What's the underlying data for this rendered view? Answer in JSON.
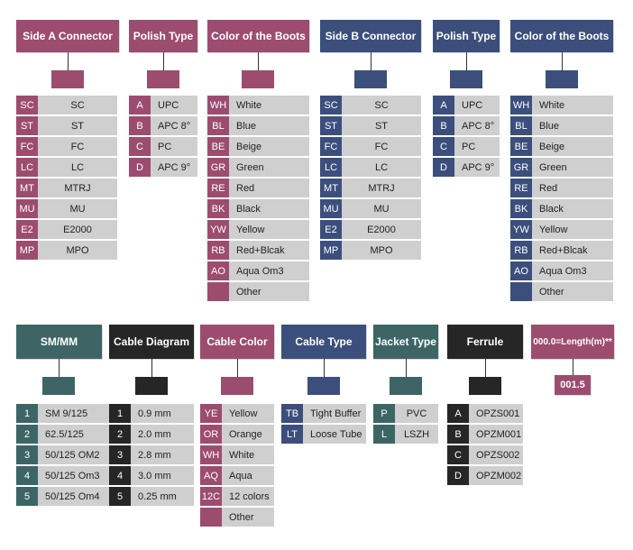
{
  "colors": {
    "mauve": "#9c4d6f",
    "navy": "#3c4f7c",
    "teal": "#3d6566",
    "dark": "#262626",
    "cell": "#cfcfcf"
  },
  "side_a_connector": {
    "title": "Side A Connector",
    "rows": [
      {
        "code": "SC",
        "label": "SC"
      },
      {
        "code": "ST",
        "label": "ST"
      },
      {
        "code": "FC",
        "label": "FC"
      },
      {
        "code": "LC",
        "label": "LC"
      },
      {
        "code": "MT",
        "label": "MTRJ"
      },
      {
        "code": "MU",
        "label": "MU"
      },
      {
        "code": "E2",
        "label": "E2000"
      },
      {
        "code": "MP",
        "label": "MPO"
      }
    ]
  },
  "polish_type_a": {
    "title": "Polish Type",
    "rows": [
      {
        "code": "A",
        "label": "UPC"
      },
      {
        "code": "B",
        "label": "APC 8°"
      },
      {
        "code": "C",
        "label": "PC"
      },
      {
        "code": "D",
        "label": "APC 9°"
      }
    ]
  },
  "boot_color_a": {
    "title": "Color of the Boots",
    "rows": [
      {
        "code": "WH",
        "label": "White"
      },
      {
        "code": "BL",
        "label": "Blue"
      },
      {
        "code": "BE",
        "label": "Beige"
      },
      {
        "code": "GR",
        "label": "Green"
      },
      {
        "code": "RE",
        "label": "Red"
      },
      {
        "code": "BK",
        "label": "Black"
      },
      {
        "code": "YW",
        "label": "Yellow"
      },
      {
        "code": "RB",
        "label": "Red+Blcak"
      },
      {
        "code": "AO",
        "label": "Aqua Om3"
      },
      {
        "code": "",
        "label": "Other"
      }
    ]
  },
  "side_b_connector": {
    "title": "Side B Connector",
    "rows": [
      {
        "code": "SC",
        "label": "SC"
      },
      {
        "code": "ST",
        "label": "ST"
      },
      {
        "code": "FC",
        "label": "FC"
      },
      {
        "code": "LC",
        "label": "LC"
      },
      {
        "code": "MT",
        "label": "MTRJ"
      },
      {
        "code": "MU",
        "label": "MU"
      },
      {
        "code": "E2",
        "label": "E2000"
      },
      {
        "code": "MP",
        "label": "MPO"
      }
    ]
  },
  "polish_type_b": {
    "title": "Polish Type",
    "rows": [
      {
        "code": "A",
        "label": "UPC"
      },
      {
        "code": "B",
        "label": "APC 8°"
      },
      {
        "code": "C",
        "label": "PC"
      },
      {
        "code": "D",
        "label": "APC 9°"
      }
    ]
  },
  "boot_color_b": {
    "title": "Color of the Boots",
    "rows": [
      {
        "code": "WH",
        "label": "White"
      },
      {
        "code": "BL",
        "label": "Blue"
      },
      {
        "code": "BE",
        "label": "Beige"
      },
      {
        "code": "GR",
        "label": "Green"
      },
      {
        "code": "RE",
        "label": "Red"
      },
      {
        "code": "BK",
        "label": "Black"
      },
      {
        "code": "YW",
        "label": "Yellow"
      },
      {
        "code": "RB",
        "label": "Red+Blcak"
      },
      {
        "code": "AO",
        "label": "Aqua Om3"
      },
      {
        "code": "",
        "label": "Other"
      }
    ]
  },
  "sm_mm": {
    "title": "SM/MM",
    "rows": [
      {
        "code": "1",
        "label": "SM 9/125"
      },
      {
        "code": "2",
        "label": "62.5/125"
      },
      {
        "code": "3",
        "label": "50/125 OM2"
      },
      {
        "code": "4",
        "label": "50/125 Om3"
      },
      {
        "code": "5",
        "label": "50/125 Om4"
      }
    ]
  },
  "cable_diagram": {
    "title": "Cable Diagram",
    "rows": [
      {
        "code": "1",
        "label": "0.9 mm"
      },
      {
        "code": "2",
        "label": "2.0 mm"
      },
      {
        "code": "3",
        "label": "2.8 mm"
      },
      {
        "code": "4",
        "label": "3.0 mm"
      },
      {
        "code": "5",
        "label": "0.25 mm"
      }
    ]
  },
  "cable_color": {
    "title": "Cable Color",
    "rows": [
      {
        "code": "YE",
        "label": "Yellow"
      },
      {
        "code": "OR",
        "label": "Orange"
      },
      {
        "code": "WH",
        "label": "White"
      },
      {
        "code": "AQ",
        "label": "Aqua"
      },
      {
        "code": "12C",
        "label": "12 colors"
      },
      {
        "code": "",
        "label": "Other"
      }
    ]
  },
  "cable_type": {
    "title": "Cable Type",
    "rows": [
      {
        "code": "TB",
        "label": "Tight Buffer"
      },
      {
        "code": "LT",
        "label": "Loose Tube"
      }
    ]
  },
  "jacket_type": {
    "title": "Jacket Type",
    "rows": [
      {
        "code": "P",
        "label": "PVC"
      },
      {
        "code": "L",
        "label": "LSZH"
      }
    ]
  },
  "ferrule": {
    "title": "Ferrule",
    "rows": [
      {
        "code": "A",
        "label": "OPZS001"
      },
      {
        "code": "B",
        "label": "OPZM001"
      },
      {
        "code": "C",
        "label": "OPZS002"
      },
      {
        "code": "D",
        "label": "OPZM002"
      }
    ]
  },
  "length": {
    "title": "000.0=Length(m)**",
    "example": "001.5"
  }
}
